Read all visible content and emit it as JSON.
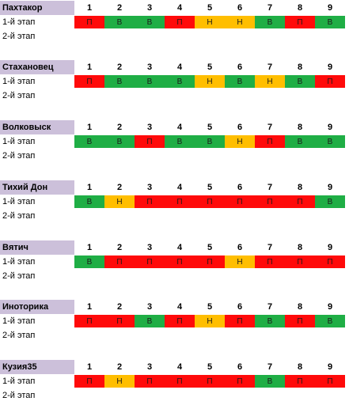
{
  "colors": {
    "win": "#1fae45",
    "loss": "#ff0a0a",
    "draw": "#ffbe00",
    "team_header_bg": "#ccc0da"
  },
  "stage_labels": [
    "1-й этап",
    "2-й этап"
  ],
  "rounds": [
    "1",
    "2",
    "3",
    "4",
    "5",
    "6",
    "7",
    "8",
    "9"
  ],
  "teams": [
    {
      "name": "Пахтакор",
      "stage1": [
        "П",
        "В",
        "В",
        "П",
        "Н",
        "Н",
        "В",
        "П",
        "В"
      ],
      "stage2": []
    },
    {
      "name": "Стахановец",
      "stage1": [
        "П",
        "В",
        "В",
        "В",
        "Н",
        "В",
        "Н",
        "В",
        "П"
      ],
      "stage2": []
    },
    {
      "name": "Волковыск",
      "stage1": [
        "В",
        "В",
        "П",
        "В",
        "В",
        "Н",
        "П",
        "В",
        "В"
      ],
      "stage2": []
    },
    {
      "name": "Тихий Дон",
      "stage1": [
        "В",
        "Н",
        "П",
        "П",
        "П",
        "П",
        "П",
        "П",
        "В"
      ],
      "stage2": []
    },
    {
      "name": "Вятич",
      "stage1": [
        "В",
        "П",
        "П",
        "П",
        "П",
        "Н",
        "П",
        "П",
        "П"
      ],
      "stage2": []
    },
    {
      "name": "Иноторика",
      "stage1": [
        "П",
        "П",
        "В",
        "П",
        "Н",
        "П",
        "В",
        "П",
        "В"
      ],
      "stage2": []
    },
    {
      "name": "Кузия35",
      "stage1": [
        "П",
        "Н",
        "П",
        "П",
        "П",
        "П",
        "В",
        "П",
        "П"
      ],
      "stage2": []
    }
  ]
}
